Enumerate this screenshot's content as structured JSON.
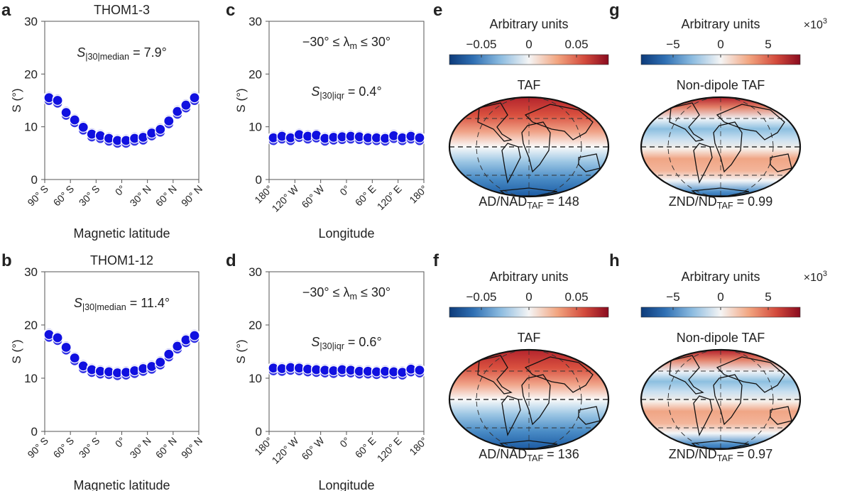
{
  "panel_letters": [
    "a",
    "b",
    "c",
    "d",
    "e",
    "f",
    "g",
    "h"
  ],
  "chart_data": [
    {
      "panel": "a",
      "type": "scatter",
      "title": "THOM1-3",
      "xlabel": "Magnetic latitude",
      "ylabel": "S (°)",
      "xlim": [
        -90,
        90
      ],
      "ylim": [
        0,
        30
      ],
      "xticks": [
        -90,
        -60,
        -30,
        0,
        30,
        60,
        90
      ],
      "xtick_labels": [
        "90° S",
        "60° S",
        "30° S",
        "0°",
        "30° N",
        "60° N",
        "90° N"
      ],
      "yticks": [
        0,
        10,
        20,
        30
      ],
      "annotation": {
        "main": "S",
        "sub": "|30|median",
        "rest": " = 7.9°"
      },
      "x": [
        -85,
        -75,
        -65,
        -55,
        -45,
        -35,
        -25,
        -15,
        -5,
        5,
        15,
        25,
        35,
        45,
        55,
        65,
        75,
        85
      ],
      "y": [
        15.5,
        15.0,
        12.7,
        11.3,
        9.9,
        8.6,
        8.3,
        7.8,
        7.4,
        7.4,
        7.8,
        8.0,
        8.8,
        9.5,
        11.1,
        12.9,
        14.1,
        15.5
      ],
      "marker_color": "#1010e0"
    },
    {
      "panel": "b",
      "type": "scatter",
      "title": "THOM1-12",
      "xlabel": "Magnetic latitude",
      "ylabel": "S (°)",
      "xlim": [
        -90,
        90
      ],
      "ylim": [
        0,
        30
      ],
      "xticks": [
        -90,
        -60,
        -30,
        0,
        30,
        60,
        90
      ],
      "xtick_labels": [
        "90° S",
        "60° S",
        "30° S",
        "0°",
        "30° N",
        "60° N",
        "90° N"
      ],
      "yticks": [
        0,
        10,
        20,
        30
      ],
      "annotation": {
        "main": "S",
        "sub": "|30|median",
        "rest": " = 11.4°"
      },
      "x": [
        -85,
        -75,
        -65,
        -55,
        -45,
        -35,
        -25,
        -15,
        -5,
        5,
        15,
        25,
        35,
        45,
        55,
        65,
        75,
        85
      ],
      "y": [
        18.2,
        17.6,
        15.8,
        13.8,
        12.3,
        11.6,
        11.3,
        11.2,
        11.0,
        11.1,
        11.4,
        11.8,
        12.2,
        13.0,
        14.5,
        16.0,
        17.2,
        18.0
      ],
      "marker_color": "#1010e0"
    },
    {
      "panel": "c",
      "type": "scatter",
      "title": "",
      "xlabel": "Longitude",
      "ylabel": "S (°)",
      "xlim": [
        -180,
        180
      ],
      "ylim": [
        0,
        30
      ],
      "xticks": [
        -180,
        -120,
        -60,
        0,
        60,
        120,
        180
      ],
      "xtick_labels": [
        "180°",
        "120° W",
        "60° W",
        "0°",
        "60° E",
        "120° E",
        "180°"
      ],
      "yticks": [
        0,
        10,
        20,
        30
      ],
      "range_label": {
        "pre": "−30° ≤ λ",
        "sub": "m",
        "post": " ≤ 30°"
      },
      "annotation": {
        "main": "S",
        "sub": "|30|iqr",
        "rest": " = 0.4°"
      },
      "x": [
        -170,
        -150,
        -130,
        -110,
        -90,
        -70,
        -50,
        -30,
        -10,
        10,
        30,
        50,
        70,
        90,
        110,
        130,
        150,
        170
      ],
      "y": [
        7.9,
        8.2,
        7.9,
        8.5,
        8.2,
        8.4,
        7.8,
        8.0,
        8.1,
        8.2,
        8.1,
        7.9,
        7.9,
        7.8,
        8.3,
        7.9,
        8.2,
        7.9
      ],
      "marker_color": "#1010e0"
    },
    {
      "panel": "d",
      "type": "scatter",
      "title": "",
      "xlabel": "Longitude",
      "ylabel": "S (°)",
      "xlim": [
        -180,
        180
      ],
      "ylim": [
        0,
        30
      ],
      "xticks": [
        -180,
        -120,
        -60,
        0,
        60,
        120,
        180
      ],
      "xtick_labels": [
        "180°",
        "120° W",
        "60° W",
        "0°",
        "60° E",
        "120° E",
        "180°"
      ],
      "yticks": [
        0,
        10,
        20,
        30
      ],
      "range_label": {
        "pre": "−30° ≤ λ",
        "sub": "m",
        "post": " ≤ 30°"
      },
      "annotation": {
        "main": "S",
        "sub": "|30|iqr",
        "rest": " = 0.6°"
      },
      "x": [
        -170,
        -150,
        -130,
        -110,
        -90,
        -70,
        -50,
        -30,
        -10,
        10,
        30,
        50,
        70,
        90,
        110,
        130,
        150,
        170
      ],
      "y": [
        11.9,
        11.8,
        12.0,
        11.9,
        11.7,
        11.6,
        11.5,
        11.4,
        11.6,
        11.5,
        11.3,
        11.3,
        11.2,
        11.3,
        11.2,
        11.1,
        11.7,
        11.5
      ],
      "marker_color": "#1010e0"
    }
  ],
  "maps": [
    {
      "panel": "e",
      "cbar_label": "Arbitrary units",
      "cbar_ticks": [
        "−0.05",
        "0",
        "0.05"
      ],
      "multiplier": "",
      "title": "TAF",
      "caption": {
        "pre": "AD/NAD",
        "sub": "TAF",
        "post": " = 148"
      },
      "pattern": "dipole"
    },
    {
      "panel": "g",
      "cbar_label": "Arbitrary units",
      "cbar_ticks": [
        "−5",
        "0",
        "5"
      ],
      "multiplier": "×10",
      "multiplier_exp": "3",
      "title": "Non-dipole TAF",
      "caption": {
        "pre": "ZND/ND",
        "sub": "TAF",
        "post": " = 0.99"
      },
      "pattern": "nondipole"
    },
    {
      "panel": "f",
      "cbar_label": "Arbitrary units",
      "cbar_ticks": [
        "−0.05",
        "0",
        "0.05"
      ],
      "multiplier": "",
      "title": "TAF",
      "caption": {
        "pre": "AD/NAD",
        "sub": "TAF",
        "post": " = 136"
      },
      "pattern": "dipole"
    },
    {
      "panel": "h",
      "cbar_label": "Arbitrary units",
      "cbar_ticks": [
        "−5",
        "0",
        "5"
      ],
      "multiplier": "×10",
      "multiplier_exp": "3",
      "title": "Non-dipole TAF",
      "caption": {
        "pre": "ZND/ND",
        "sub": "TAF",
        "post": " = 0.97"
      },
      "pattern": "nondipole"
    }
  ],
  "colors": {
    "blue": "#1f5aa6",
    "white": "#f7f7f7",
    "red": "#b2182b",
    "marker": "#1010e0"
  }
}
